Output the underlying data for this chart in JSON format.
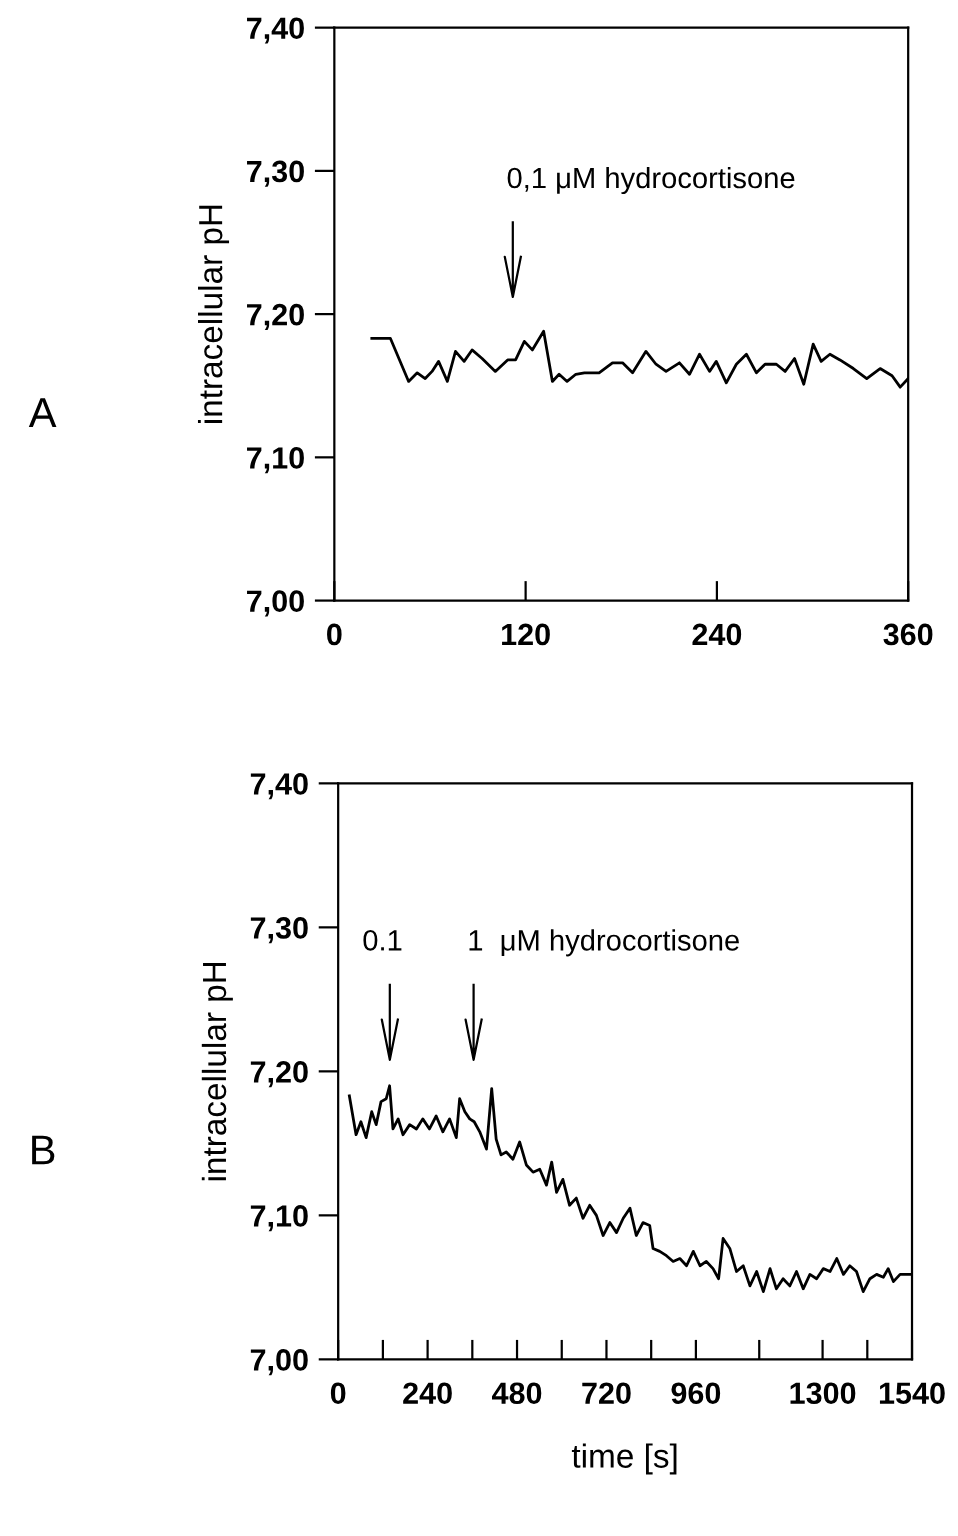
{
  "chart_data": [
    {
      "type": "line",
      "title": "A",
      "ylabel": "intracellular pH",
      "xlim": [
        0,
        360
      ],
      "xticks": [
        0,
        120,
        240,
        360
      ],
      "ylim": [
        7.0,
        7.4
      ],
      "yticks": [
        {
          "value": 7.0,
          "label": "7,00"
        },
        {
          "value": 7.1,
          "label": "7,10"
        },
        {
          "value": 7.2,
          "label": "7,20"
        },
        {
          "value": 7.3,
          "label": "7,30"
        },
        {
          "value": 7.4,
          "label": "7,40"
        }
      ],
      "grid": false,
      "legend": false,
      "marker": "none",
      "line_style": "solid",
      "annotations": [
        "0,1 μM hydrocortisone"
      ],
      "series": [
        {
          "color": "#000000",
          "x": [
            23.5,
            35.2,
            46.6,
            52,
            57,
            61.3,
            65.4,
            70.9,
            76,
            81.4,
            86.4,
            92.7,
            101,
            108.7,
            113.7,
            119.2,
            124.2,
            131.3,
            136.8,
            141,
            146,
            151.5,
            156.9,
            166.1,
            174.5,
            180.8,
            187.1,
            195.5,
            201.8,
            208.1,
            216.5,
            222.8,
            229.1,
            235.4,
            239.6,
            245.9,
            252.2,
            258.5,
            264.8,
            270.2,
            277.3,
            282.8,
            288.7,
            294.5,
            300.4,
            305.4,
            310.9,
            317.2,
            325.6,
            334,
            342.4,
            349.9,
            355,
            360
          ],
          "values": [
            7.183,
            7.183,
            7.153,
            7.159,
            7.155,
            7.16,
            7.167,
            7.153,
            7.174,
            7.167,
            7.175,
            7.169,
            7.16,
            7.168,
            7.168,
            7.181,
            7.175,
            7.188,
            7.153,
            7.158,
            7.153,
            7.158,
            7.159,
            7.159,
            7.166,
            7.166,
            7.159,
            7.174,
            7.165,
            7.16,
            7.166,
            7.158,
            7.172,
            7.16,
            7.167,
            7.152,
            7.165,
            7.172,
            7.159,
            7.165,
            7.165,
            7.16,
            7.169,
            7.151,
            7.179,
            7.167,
            7.172,
            7.168,
            7.162,
            7.155,
            7.162,
            7.157,
            7.149,
            7.155
          ]
        }
      ]
    },
    {
      "type": "line",
      "title": "B",
      "ylabel": "intracellular pH",
      "xlabel": "time [s]",
      "xlim": [
        0,
        1540
      ],
      "xticks": [
        0,
        {
          "value": 120,
          "label": null
        },
        240,
        {
          "value": 360,
          "label": null
        },
        480,
        {
          "value": 600,
          "label": null
        },
        720,
        {
          "value": 840,
          "label": null
        },
        960,
        {
          "value": 1130,
          "label": null
        },
        1300,
        {
          "value": 1420,
          "label": null
        },
        1540
      ],
      "ylim": [
        7.0,
        7.4
      ],
      "yticks": [
        {
          "value": 7.0,
          "label": "7,00"
        },
        {
          "value": 7.1,
          "label": "7,10"
        },
        {
          "value": 7.2,
          "label": "7,20"
        },
        {
          "value": 7.3,
          "label": "7,30"
        },
        {
          "value": 7.4,
          "label": "7,40"
        }
      ],
      "grid": false,
      "legend": false,
      "marker": "none",
      "line_style": "solid",
      "annotations": [
        "0.1",
        "1  μM hydrocortisone"
      ],
      "series": [
        {
          "color": "#000000",
          "x": [
            30,
            48,
            61,
            75,
            90,
            102,
            115,
            129,
            138,
            147,
            161,
            174,
            192,
            210,
            227,
            245,
            263,
            281,
            299,
            317,
            326,
            340,
            353,
            365,
            380,
            398,
            412,
            424,
            437,
            451,
            469,
            487,
            505,
            523,
            541,
            559,
            573,
            586,
            603,
            621,
            639,
            657,
            675,
            693,
            711,
            729,
            747,
            765,
            783,
            800,
            818,
            836,
            845,
            863,
            881,
            899,
            917,
            935,
            953,
            971,
            988,
            1006,
            1021,
            1033,
            1051,
            1069,
            1087,
            1105,
            1123,
            1141,
            1159,
            1176,
            1194,
            1212,
            1230,
            1248,
            1266,
            1284,
            1302,
            1320,
            1338,
            1356,
            1373,
            1391,
            1409,
            1427,
            1445,
            1463,
            1476,
            1490,
            1508,
            1540
          ],
          "values": [
            7.183,
            7.156,
            7.165,
            7.154,
            7.172,
            7.163,
            7.179,
            7.181,
            7.19,
            7.16,
            7.167,
            7.156,
            7.163,
            7.16,
            7.167,
            7.16,
            7.169,
            7.158,
            7.167,
            7.154,
            7.181,
            7.172,
            7.167,
            7.165,
            7.158,
            7.146,
            7.188,
            7.153,
            7.142,
            7.144,
            7.139,
            7.151,
            7.135,
            7.13,
            7.132,
            7.121,
            7.137,
            7.116,
            7.125,
            7.107,
            7.112,
            7.098,
            7.107,
            7.1,
            7.086,
            7.095,
            7.088,
            7.098,
            7.105,
            7.086,
            7.095,
            7.093,
            7.077,
            7.075,
            7.072,
            7.068,
            7.07,
            7.065,
            7.075,
            7.065,
            7.068,
            7.063,
            7.056,
            7.084,
            7.077,
            7.061,
            7.065,
            7.051,
            7.061,
            7.047,
            7.063,
            7.049,
            7.056,
            7.051,
            7.061,
            7.049,
            7.059,
            7.056,
            7.063,
            7.061,
            7.07,
            7.059,
            7.065,
            7.061,
            7.047,
            7.056,
            7.059,
            7.057,
            7.063,
            7.054,
            7.059,
            7.059
          ]
        }
      ]
    }
  ]
}
